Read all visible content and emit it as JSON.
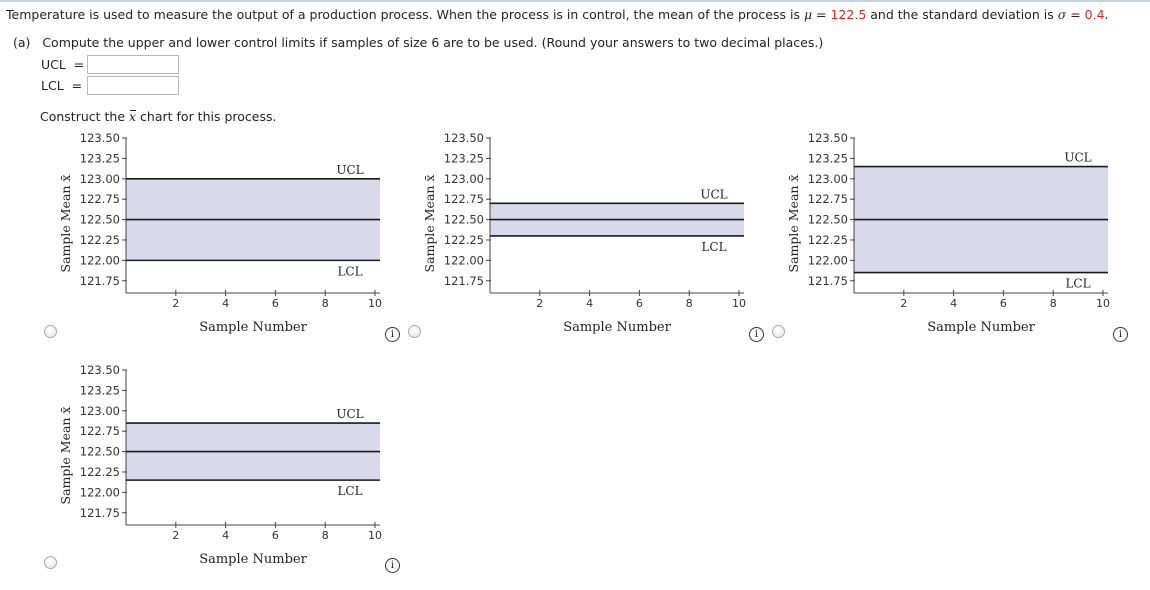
{
  "question": {
    "intro": "Temperature is used to measure the output of a production process. When the process is in control, the mean of the process is ",
    "mu_symbol": "μ",
    "mu_eq": " = ",
    "mu_value": "122.5",
    "mid": " and the standard deviation is ",
    "sigma_symbol": "σ",
    "sigma_eq": " = ",
    "sigma_value": "0.4",
    "end": "."
  },
  "part_a": "(a)   Compute the upper and lower control limits if samples of size 6 are to be used. (Round your answers to two decimal places.)",
  "ucl_row": {
    "label": "UCL  =",
    "value": ""
  },
  "lcl_row": {
    "label": "LCL  =",
    "value": ""
  },
  "construct": {
    "before": "Construct the ",
    "symbol": "x",
    "after": " chart for this process."
  },
  "colors": {
    "band": "#d9d9ec",
    "line": "#1a1a1a",
    "accent": "#d12a1f"
  },
  "chart_data": [
    {
      "type": "line",
      "option": "A",
      "ylabel": "Sample Mean x̄",
      "xlabel": "Sample Number",
      "ylim": [
        121.6,
        123.5
      ],
      "xlim": [
        0,
        10.2
      ],
      "yticks": [
        "123.50",
        "123.25",
        "123.00",
        "122.75",
        "122.50",
        "122.25",
        "122.00",
        "121.75"
      ],
      "ytick_values": [
        123.5,
        123.25,
        123.0,
        122.75,
        122.5,
        122.25,
        122.0,
        121.75
      ],
      "xticks": [
        "2",
        "4",
        "6",
        "8",
        "10"
      ],
      "xtick_values": [
        2,
        4,
        6,
        8,
        10
      ],
      "ucl": 123.0,
      "center": 122.5,
      "lcl": 122.0,
      "ucl_label": "UCL",
      "lcl_label": "LCL",
      "ucl_label_pos": "above",
      "lcl_label_pos": "below"
    },
    {
      "type": "line",
      "option": "B",
      "ylabel": "Sample Mean x̄",
      "xlabel": "Sample Number",
      "ylim": [
        121.6,
        123.5
      ],
      "xlim": [
        0,
        10.2
      ],
      "yticks": [
        "123.50",
        "123.25",
        "123.00",
        "122.75",
        "122.50",
        "122.25",
        "122.00",
        "121.75"
      ],
      "ytick_values": [
        123.5,
        123.25,
        123.0,
        122.75,
        122.5,
        122.25,
        122.0,
        121.75
      ],
      "xticks": [
        "2",
        "4",
        "6",
        "8",
        "10"
      ],
      "xtick_values": [
        2,
        4,
        6,
        8,
        10
      ],
      "ucl": 122.7,
      "center": 122.5,
      "lcl": 122.3,
      "ucl_label": "UCL",
      "lcl_label": "LCL",
      "ucl_label_pos": "above",
      "lcl_label_pos": "below"
    },
    {
      "type": "line",
      "option": "C",
      "ylabel": "Sample Mean x̄",
      "xlabel": "Sample Number",
      "ylim": [
        121.6,
        123.5
      ],
      "xlim": [
        0,
        10.2
      ],
      "yticks": [
        "123.50",
        "123.25",
        "123.00",
        "122.75",
        "122.50",
        "122.25",
        "122.00",
        "121.75"
      ],
      "ytick_values": [
        123.5,
        123.25,
        123.0,
        122.75,
        122.5,
        122.25,
        122.0,
        121.75
      ],
      "xticks": [
        "2",
        "4",
        "6",
        "8",
        "10"
      ],
      "xtick_values": [
        2,
        4,
        6,
        8,
        10
      ],
      "ucl": 123.15,
      "center": 122.5,
      "lcl": 121.85,
      "ucl_label": "UCL",
      "lcl_label": "LCL",
      "ucl_label_pos": "above",
      "lcl_label_pos": "below"
    },
    {
      "type": "line",
      "option": "D",
      "ylabel": "Sample Mean x̄",
      "xlabel": "Sample Number",
      "ylim": [
        121.6,
        123.5
      ],
      "xlim": [
        0,
        10.2
      ],
      "yticks": [
        "123.50",
        "123.25",
        "123.00",
        "122.75",
        "122.50",
        "122.25",
        "122.00",
        "121.75"
      ],
      "ytick_values": [
        123.5,
        123.25,
        123.0,
        122.75,
        122.5,
        122.25,
        122.0,
        121.75
      ],
      "xticks": [
        "2",
        "4",
        "6",
        "8",
        "10"
      ],
      "xtick_values": [
        2,
        4,
        6,
        8,
        10
      ],
      "ucl": 122.85,
      "center": 122.5,
      "lcl": 122.15,
      "ucl_label": "UCL",
      "lcl_label": "LCL",
      "ucl_label_pos": "above",
      "lcl_label_pos": "below"
    }
  ],
  "info_icon": "info-icon",
  "info_glyph": "i"
}
